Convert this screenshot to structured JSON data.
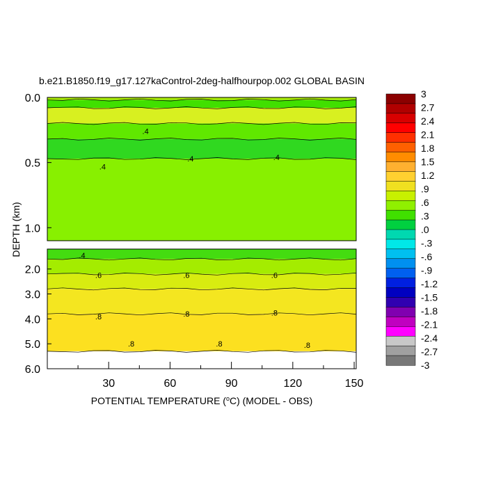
{
  "chart_data": {
    "type": "heatmap",
    "title": "b.e21.B1850.f19_g17.127kaControl-2deg-halfhourpop.002 GLOBAL BASIN",
    "xlabel": {
      "before": "POTENTIAL TEMPERATURE (",
      "sup": "o",
      "after": "C) (MODEL - OBS)"
    },
    "ylabel": "DEPTH (km)",
    "xlim": [
      0,
      151
    ],
    "x_ticks": [
      "30",
      "60",
      "90",
      "120",
      "150"
    ],
    "x_tick_values": [
      30,
      60,
      90,
      120,
      150
    ],
    "upper_panel": {
      "ylim": [
        0,
        1.1
      ],
      "y_ticks": [
        "0.0",
        "0.5",
        "1.0"
      ],
      "y_tick_values": [
        0.0,
        0.5,
        1.0
      ],
      "bands": [
        {
          "top": 0.0,
          "bottom": 0.02,
          "value": 0.6,
          "color": "#a8e800"
        },
        {
          "top": 0.02,
          "bottom": 0.08,
          "value": 0.5,
          "color": "#40e000"
        },
        {
          "top": 0.08,
          "bottom": 0.2,
          "value": 0.7,
          "color": "#d8f020"
        },
        {
          "top": 0.2,
          "bottom": 0.32,
          "value": 0.5,
          "color": "#60e800"
        },
        {
          "top": 0.32,
          "bottom": 0.47,
          "value": 0.4,
          "color": "#30d820"
        },
        {
          "top": 0.47,
          "bottom": 1.1,
          "value": 0.55,
          "color": "#88f000"
        }
      ],
      "contour_labels": [
        {
          "x": 27,
          "depth": 0.53,
          "text": ".4"
        },
        {
          "x": 70,
          "depth": 0.47,
          "text": ".4"
        },
        {
          "x": 112,
          "depth": 0.46,
          "text": ".4"
        },
        {
          "x": 48,
          "depth": 0.26,
          "text": ".4"
        }
      ]
    },
    "lower_panel": {
      "ylim": [
        1.2,
        6.0
      ],
      "y_ticks": [
        "2.0",
        "3.0",
        "4.0",
        "5.0",
        "6.0"
      ],
      "y_tick_values": [
        2.0,
        3.0,
        4.0,
        5.0,
        6.0
      ],
      "bands": [
        {
          "top": 1.2,
          "bottom": 1.6,
          "value": 0.45,
          "color": "#44dc10"
        },
        {
          "top": 1.6,
          "bottom": 2.2,
          "value": 0.55,
          "color": "#a4ec00"
        },
        {
          "top": 2.2,
          "bottom": 2.8,
          "value": 0.65,
          "color": "#d8ec10"
        },
        {
          "top": 2.8,
          "bottom": 3.8,
          "value": 0.75,
          "color": "#f4e620"
        },
        {
          "top": 3.8,
          "bottom": 5.3,
          "value": 0.85,
          "color": "#fce020"
        },
        {
          "top": 5.3,
          "bottom": 6.0,
          "value": 0.95,
          "color": "#ffffff"
        }
      ],
      "contour_labels": [
        {
          "x": 17,
          "depth": 1.45,
          "text": ".4"
        },
        {
          "x": 25,
          "depth": 2.25,
          "text": ".6"
        },
        {
          "x": 68,
          "depth": 2.25,
          "text": ".6"
        },
        {
          "x": 111,
          "depth": 2.25,
          "text": ".6"
        },
        {
          "x": 25,
          "depth": 3.9,
          "text": ".8"
        },
        {
          "x": 68,
          "depth": 3.8,
          "text": ".8"
        },
        {
          "x": 111,
          "depth": 3.75,
          "text": ".8"
        },
        {
          "x": 41,
          "depth": 5.0,
          "text": ".8"
        },
        {
          "x": 84,
          "depth": 5.0,
          "text": ".8"
        },
        {
          "x": 127,
          "depth": 5.05,
          "text": ".8"
        }
      ]
    },
    "colorbar": {
      "labels": [
        "3",
        "2.7",
        "2.4",
        "2.1",
        "1.8",
        "1.5",
        "1.2",
        ".9",
        ".6",
        ".3",
        ".0",
        "-.3",
        "-.6",
        "-.9",
        "-1.2",
        "-1.5",
        "-1.8",
        "-2.1",
        "-2.4",
        "-2.7",
        "-3"
      ],
      "colors": [
        "#8b0000",
        "#b00000",
        "#d80000",
        "#ff0000",
        "#ff3000",
        "#ff6000",
        "#ff8c00",
        "#ffb030",
        "#ffd030",
        "#f0e020",
        "#c8f000",
        "#90f000",
        "#40e000",
        "#00d040",
        "#00d8b0",
        "#00e8e8",
        "#00c0f0",
        "#0090f0",
        "#0060f0",
        "#0020e0",
        "#0000c0",
        "#3000b0",
        "#8000b0",
        "#c000c0",
        "#ff00ff",
        "#c8c8c8",
        "#a0a0a0",
        "#787878"
      ]
    }
  }
}
